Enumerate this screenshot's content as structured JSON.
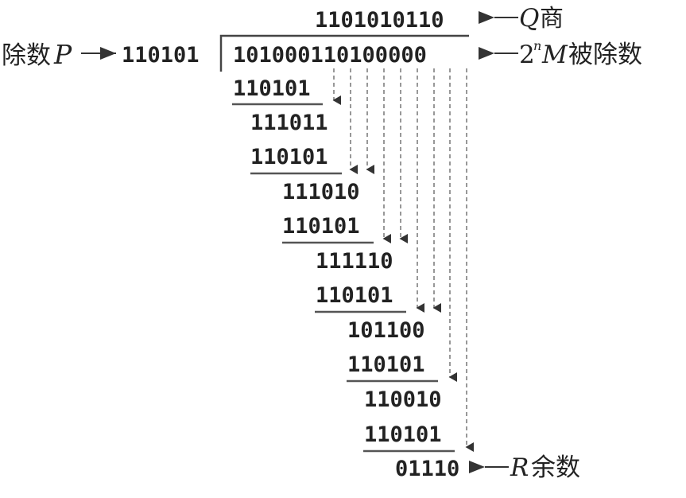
{
  "top": {
    "quotient_value": "1101010110",
    "quotient_label_symbol": "Q",
    "quotient_label_text": "商"
  },
  "left": {
    "divisor_label_text": "除数",
    "divisor_label_symbol": "P",
    "divisor_value": "110101"
  },
  "dividend": {
    "value": "101000110100000",
    "label_prefix": "2",
    "label_exponent": "n",
    "label_symbol": "M",
    "label_text": "被除数"
  },
  "steps": [
    "110101",
    "111011",
    "110101",
    "111010",
    "110101",
    "111110",
    "110101",
    "101100",
    "110101",
    "110010",
    "110101"
  ],
  "remainder": {
    "value": "01110",
    "label_symbol": "R",
    "label_text": "余数"
  }
}
